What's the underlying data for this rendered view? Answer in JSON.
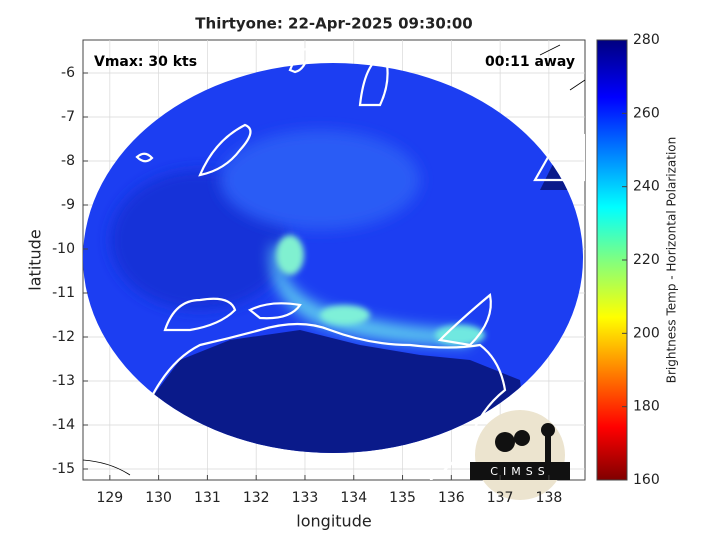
{
  "chart_data": {
    "type": "map",
    "title": "Thirtyone: 22-Apr-2025 09:30:00",
    "annotations": [
      "Vmax: 30 kts",
      "00:11 away"
    ],
    "xlabel": "longitude",
    "ylabel": "latitude",
    "xlim": [
      128.45,
      138.74
    ],
    "xticks": [
      129,
      130,
      131,
      132,
      133,
      134,
      135,
      136,
      137,
      138
    ],
    "ylim": [
      -15.25,
      -5.25
    ],
    "yticks": [
      -15,
      -14,
      -13,
      -12,
      -11,
      -10,
      -9,
      -8,
      -7,
      -6
    ],
    "grid": true,
    "colorbar": {
      "label": "Brightness Temp - Horizontal Polarization",
      "lim": [
        160,
        280
      ],
      "ticks": [
        160,
        180,
        200,
        220,
        240,
        260,
        280
      ]
    },
    "logo": "CIMSS"
  }
}
